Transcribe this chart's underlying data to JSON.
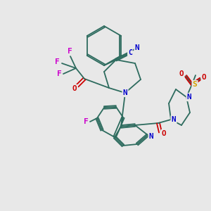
{
  "bg_color": "#e8e8e8",
  "bond_color": "#2d6b5e",
  "N_color": "#0000cc",
  "O_color": "#cc0000",
  "F_color": "#cc00cc",
  "S_color": "#ccaa00",
  "label_colors": {
    "N": "#0000cc",
    "O": "#cc0000",
    "F": "#cc44cc",
    "S": "#ccaa00",
    "C": "#0000cc"
  },
  "figsize": [
    3.0,
    3.0
  ],
  "dpi": 100
}
